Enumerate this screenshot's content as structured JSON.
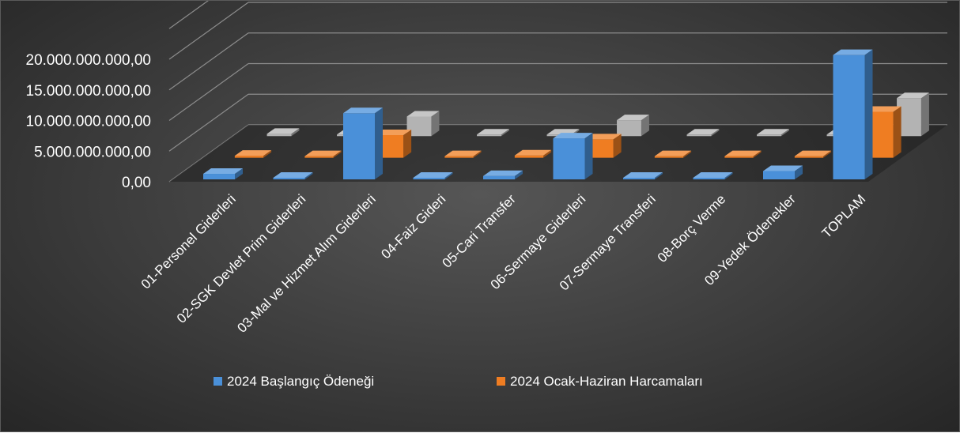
{
  "chart_data": {
    "type": "bar",
    "variant": "3d-clustered-column",
    "title": "",
    "xlabel": "",
    "ylabel": "",
    "ylim": [
      0,
      20000000000
    ],
    "y_ticks": [
      "0,00",
      "5.000.000.000,00",
      "10.000.000.000,00",
      "15.000.000.000,00",
      "20.000.000.000,00"
    ],
    "grid": true,
    "legend_position": "bottom",
    "categories": [
      "01-Personel Giderleri",
      "02-SGK Devlet Prim Giderleri",
      "03-Mal ve Hizmet Alım Giderleri",
      "04-Faiz Gideri",
      "05-Cari Transfer",
      "06-Sermaye Giderleri",
      "07-Sermaye Transferi",
      "08-Borç Verme",
      "09-Yedek Ödenekler",
      "TOPLAM"
    ],
    "series": [
      {
        "name": "2024 Başlangıç Ödeneği",
        "color": "#4a90d9",
        "values": [
          900000000,
          80000000,
          10800000000,
          30000000,
          550000000,
          6700000000,
          30000000,
          0,
          1350000000,
          20300000000
        ]
      },
      {
        "name": "2024 Ocak-Haziran Harcamaları",
        "color": "#ef7d22",
        "values": [
          330000000,
          60000000,
          3700000000,
          40000000,
          380000000,
          3000000000,
          0,
          0,
          0,
          7500000000
        ]
      },
      {
        "name": "",
        "color": "#b3b3b3",
        "values": [
          380000000,
          30000000,
          3200000000,
          20000000,
          40000000,
          2600000000,
          0,
          20000000,
          0,
          6200000000
        ]
      }
    ],
    "legend": [
      "2024 Başlangıç Ödeneği",
      "2024 Ocak-Haziran Harcamaları"
    ]
  }
}
